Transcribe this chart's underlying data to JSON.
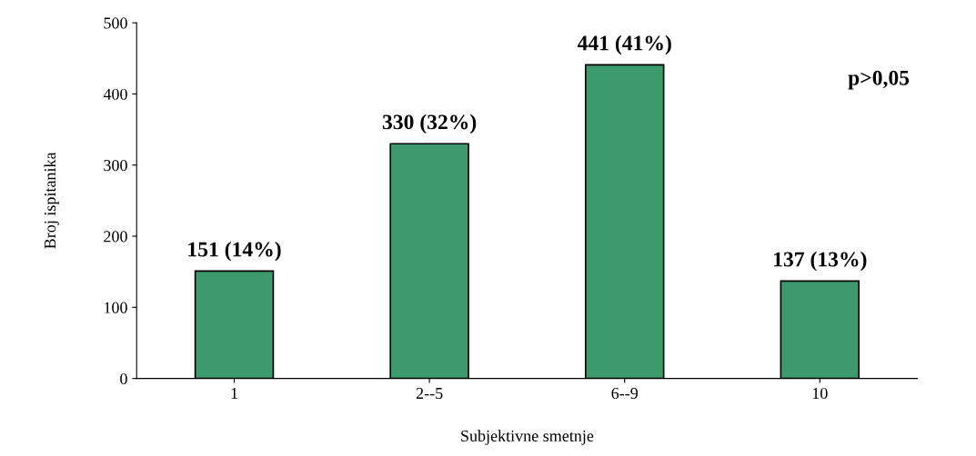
{
  "chart_data": {
    "type": "bar",
    "xlabel": "Subjektivne smetnje",
    "ylabel": "Broj ispitanika",
    "categories": [
      "1",
      "2--5",
      "6--9",
      "10"
    ],
    "values": [
      151,
      330,
      441,
      137
    ],
    "value_labels": [
      "151 (14%)",
      "330 (32%)",
      "441 (41%)",
      "137 (13%)"
    ],
    "color": "#3c9a6c",
    "ylim": [
      0,
      500
    ],
    "yticks": [
      0,
      100,
      200,
      300,
      400,
      500
    ],
    "annotations": [
      "p>0,05"
    ],
    "grid": false,
    "legend": false
  }
}
